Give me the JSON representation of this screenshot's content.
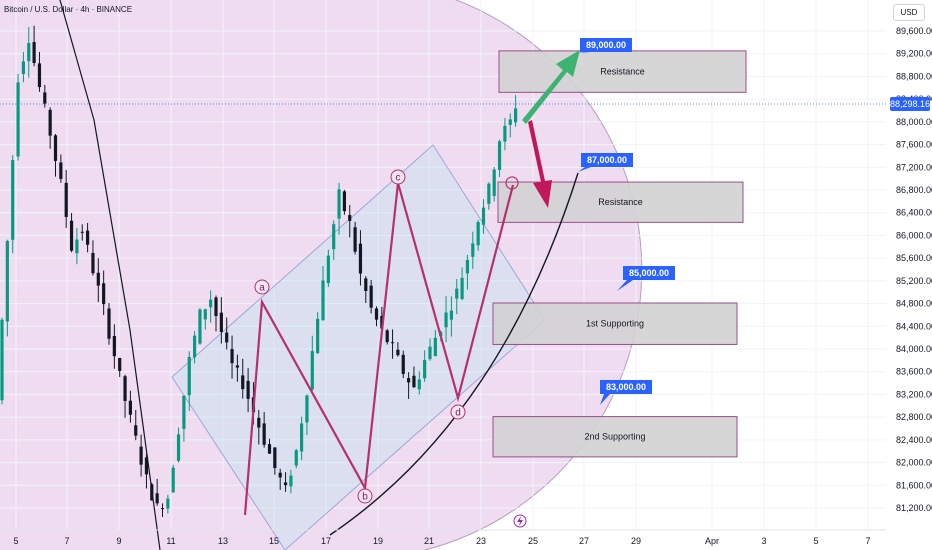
{
  "header": {
    "symbol": "Bitcoin / U.S. Dollar · 4h · BINANCE",
    "currency": "USD"
  },
  "last_price": "88,298.16",
  "chart_data": {
    "type": "candlestick",
    "y_axis": {
      "ticks": [
        "89,600.00",
        "89,200.00",
        "88,800.00",
        "88,400.00",
        "88,000.00",
        "87,600.00",
        "87,200.00",
        "86,800.00",
        "86,400.00",
        "86,000.00",
        "85,600.00",
        "85,200.00",
        "84,800.00",
        "84,400.00",
        "84,000.00",
        "83,600.00",
        "83,200.00",
        "82,800.00",
        "82,400.00",
        "82,000.00",
        "81,600.00",
        "81,200.00"
      ],
      "range": [
        81000,
        89900
      ]
    },
    "x_axis": {
      "ticks": [
        "5",
        "7",
        "9",
        "11",
        "13",
        "15",
        "17",
        "19",
        "21",
        "23",
        "25",
        "27",
        "29",
        "Apr",
        "3",
        "5",
        "7"
      ]
    },
    "price_path": [
      [
        0,
        83100
      ],
      [
        2,
        85900
      ],
      [
        4,
        88800
      ],
      [
        6,
        89500
      ],
      [
        8,
        88600
      ],
      [
        10,
        87800
      ],
      [
        12,
        86900
      ],
      [
        14,
        85800
      ],
      [
        16,
        86100
      ],
      [
        18,
        85400
      ],
      [
        20,
        84700
      ],
      [
        22,
        83900
      ],
      [
        24,
        83100
      ],
      [
        26,
        82400
      ],
      [
        28,
        81700
      ],
      [
        30,
        81200
      ],
      [
        32,
        81400
      ],
      [
        34,
        82600
      ],
      [
        36,
        83800
      ],
      [
        38,
        84600
      ],
      [
        40,
        84900
      ],
      [
        42,
        84300
      ],
      [
        44,
        83700
      ],
      [
        46,
        83400
      ],
      [
        48,
        82900
      ],
      [
        50,
        82400
      ],
      [
        52,
        81900
      ],
      [
        54,
        81500
      ],
      [
        56,
        82200
      ],
      [
        58,
        83300
      ],
      [
        60,
        84600
      ],
      [
        62,
        85700
      ],
      [
        64,
        86700
      ],
      [
        66,
        86200
      ],
      [
        68,
        85300
      ],
      [
        70,
        84700
      ],
      [
        72,
        84300
      ],
      [
        74,
        84000
      ],
      [
        76,
        83600
      ],
      [
        78,
        83300
      ],
      [
        80,
        83800
      ],
      [
        82,
        84200
      ],
      [
        84,
        84600
      ],
      [
        86,
        85000
      ],
      [
        88,
        85600
      ],
      [
        90,
        86300
      ],
      [
        92,
        86800
      ],
      [
        94,
        87700
      ],
      [
        96,
        88000
      ],
      [
        97,
        88300
      ]
    ],
    "zones": [
      {
        "label": "Resistance",
        "top": 89250,
        "bottom": 88520
      },
      {
        "label": "Resistance",
        "top": 86940,
        "bottom": 86230
      },
      {
        "label": "1st Supporting",
        "top": 84810,
        "bottom": 84080
      },
      {
        "label": "2nd Supporting",
        "top": 82810,
        "bottom": 82100
      }
    ],
    "targets": [
      "89,000.00",
      "87,000.00",
      "85,000.00",
      "83,000.00"
    ],
    "wave_labels": [
      "a",
      "b",
      "c",
      "d"
    ],
    "colors": {
      "up": "#089981",
      "down": "#131722",
      "wave": "#b5306f",
      "arrow_up": "#3cb371",
      "arrow_down": "#c2185b",
      "callout": "#2962ff",
      "zone_fill": "#d1d1d1"
    }
  }
}
